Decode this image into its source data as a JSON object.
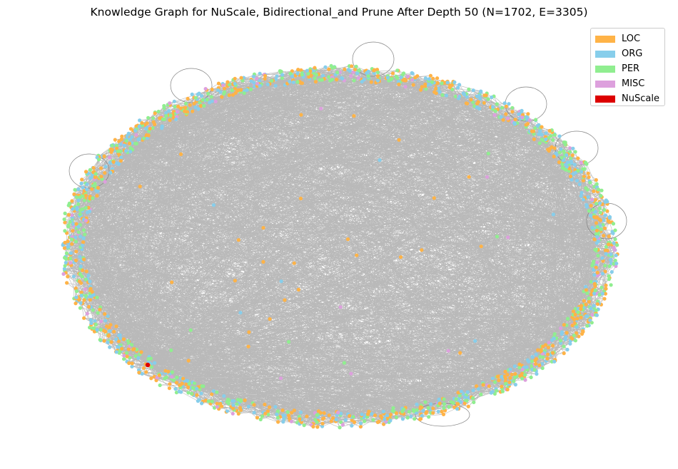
{
  "figure": {
    "title": "Knowledge Graph for NuScale, Bidirectional_and Prune After Depth 50 (N=1702, E=3305)"
  },
  "legend": {
    "items": [
      {
        "label": "LOC",
        "color": "#ffb347"
      },
      {
        "label": "ORG",
        "color": "#87ceeb"
      },
      {
        "label": "PER",
        "color": "#90ee90"
      },
      {
        "label": "MISC",
        "color": "#dda0dd"
      },
      {
        "label": "NuScale",
        "color": "#dd0000"
      }
    ]
  },
  "chart_data": {
    "type": "network",
    "node_count": 1702,
    "edge_count": 3305,
    "edge_color": "#808080",
    "categories": [
      "LOC",
      "ORG",
      "PER",
      "MISC",
      "NuScale"
    ],
    "category_colors": {
      "LOC": "#ffb347",
      "ORG": "#87ceeb",
      "PER": "#90ee90",
      "MISC": "#dda0dd",
      "NuScale": "#dd0000"
    },
    "legend_position": "top-right"
  }
}
